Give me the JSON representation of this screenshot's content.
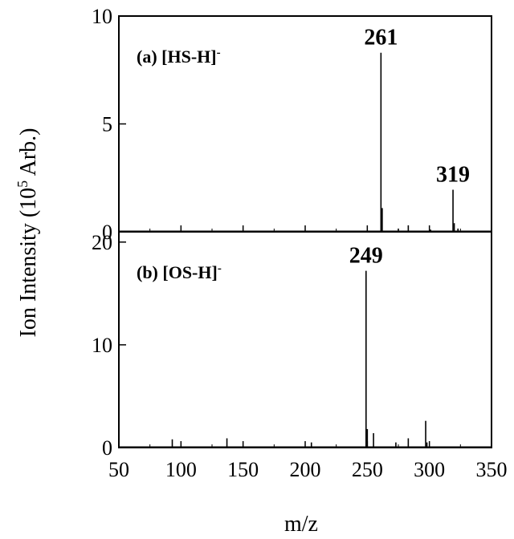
{
  "chart_data": [
    {
      "type": "line",
      "panel_label": "(a) [HS-H]",
      "panel_label_superscript": "-",
      "xlim": [
        50,
        350
      ],
      "ylim": [
        0,
        10
      ],
      "y_ticks": [
        0,
        5,
        10
      ],
      "x_ticks": [
        50,
        100,
        150,
        200,
        250,
        300,
        350
      ],
      "peaks": [
        {
          "mz": 261,
          "intensity": 8.3
        },
        {
          "mz": 262,
          "intensity": 1.1
        },
        {
          "mz": 275,
          "intensity": 0.15
        },
        {
          "mz": 283,
          "intensity": 0.3
        },
        {
          "mz": 301,
          "intensity": 0.1
        },
        {
          "mz": 319,
          "intensity": 1.95
        },
        {
          "mz": 320,
          "intensity": 0.4
        },
        {
          "mz": 323,
          "intensity": 0.15
        }
      ],
      "annotations": [
        {
          "text": "261",
          "mz": 261
        },
        {
          "text": "319",
          "mz": 319
        }
      ]
    },
    {
      "type": "line",
      "panel_label": "(b) [OS-H]",
      "panel_label_superscript": "-",
      "xlim": [
        50,
        350
      ],
      "ylim": [
        0,
        21
      ],
      "y_ticks": [
        0,
        10,
        20
      ],
      "x_ticks": [
        50,
        100,
        150,
        200,
        250,
        300,
        350
      ],
      "x_tick_labels": [
        "50",
        "100",
        "150",
        "200",
        "250",
        "300",
        "350"
      ],
      "peaks": [
        {
          "mz": 93,
          "intensity": 0.8
        },
        {
          "mz": 137,
          "intensity": 0.9
        },
        {
          "mz": 205,
          "intensity": 0.5
        },
        {
          "mz": 249,
          "intensity": 17.2
        },
        {
          "mz": 250,
          "intensity": 1.8
        },
        {
          "mz": 255,
          "intensity": 1.4
        },
        {
          "mz": 273,
          "intensity": 0.5
        },
        {
          "mz": 283,
          "intensity": 0.9
        },
        {
          "mz": 297,
          "intensity": 2.6
        },
        {
          "mz": 298,
          "intensity": 0.5
        }
      ],
      "annotations": [
        {
          "text": "249",
          "mz": 249
        }
      ]
    }
  ],
  "shared": {
    "ylabel": "Ion Intensity (10",
    "ylabel_superscript": "5",
    "ylabel_suffix": " Arb.)",
    "xlabel": "m/z"
  }
}
